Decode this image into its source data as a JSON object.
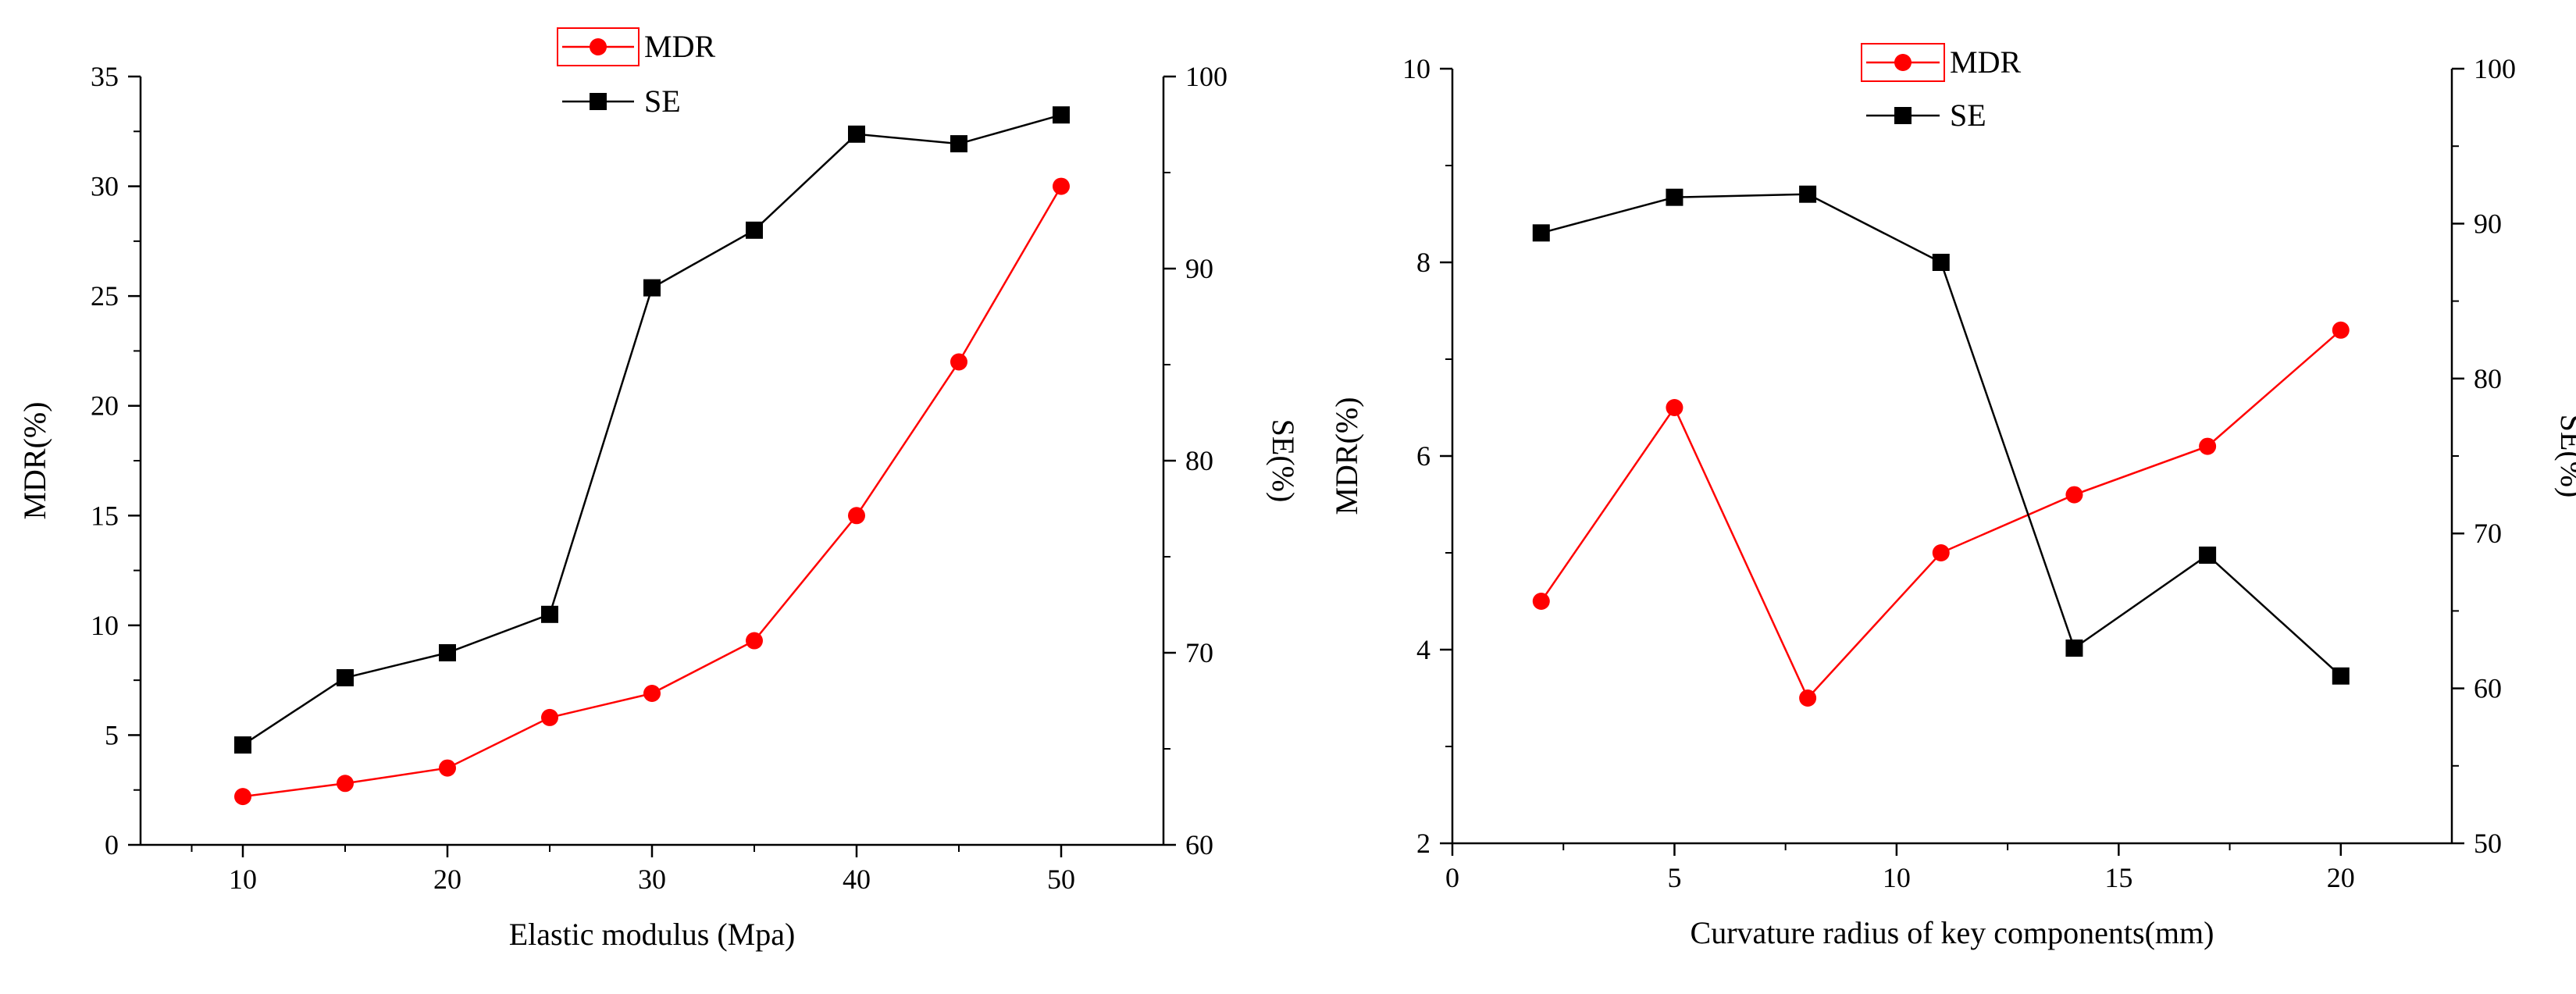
{
  "colors": {
    "mdr": "#ff0000",
    "se": "#000000",
    "axis": "#000000",
    "background": "#ffffff"
  },
  "chart_data": [
    {
      "type": "line",
      "title": "",
      "xlabel": "Elastic  modulus  (Mpa)",
      "ylabel": "MDR(%)",
      "y2label": "SE(%)",
      "xlim": [
        5,
        55
      ],
      "ylim": [
        0,
        35
      ],
      "y2lim": [
        60,
        100
      ],
      "xticks": [
        10,
        20,
        30,
        40,
        50
      ],
      "yticks": [
        0,
        5,
        10,
        15,
        20,
        25,
        30,
        35
      ],
      "y2ticks": [
        60,
        70,
        80,
        90,
        100
      ],
      "legend": {
        "placement": "top-center",
        "entries": [
          "MDR",
          "SE"
        ]
      },
      "grid": false,
      "series": [
        {
          "name": "MDR",
          "axis": "left",
          "color": "#ff0000",
          "marker": "circle",
          "x": [
            10,
            15,
            20,
            25,
            30,
            35,
            40,
            45,
            50
          ],
          "values": [
            2.2,
            2.8,
            3.5,
            5.8,
            6.9,
            9.3,
            15.0,
            22.0,
            30.0
          ]
        },
        {
          "name": "SE",
          "axis": "right",
          "color": "#000000",
          "marker": "square",
          "x": [
            10,
            15,
            20,
            25,
            30,
            35,
            40,
            45,
            50
          ],
          "values": [
            65.2,
            68.7,
            70.0,
            72.0,
            89.0,
            92.0,
            97.0,
            96.5,
            98.0
          ]
        }
      ]
    },
    {
      "type": "line",
      "title": "",
      "xlabel": "Curvature radius of key components(mm)",
      "ylabel": "MDR(%)",
      "y2label": "SE(%)",
      "xlim": [
        0,
        22.5
      ],
      "ylim": [
        2,
        10
      ],
      "y2lim": [
        50,
        100
      ],
      "xticks": [
        0,
        5,
        10,
        15,
        20
      ],
      "yticks": [
        2,
        4,
        6,
        8,
        10
      ],
      "y2ticks": [
        50,
        60,
        70,
        80,
        90,
        100
      ],
      "legend": {
        "placement": "top-center",
        "entries": [
          "MDR",
          "SE"
        ]
      },
      "grid": false,
      "series": [
        {
          "name": "MDR",
          "axis": "left",
          "color": "#ff0000",
          "marker": "circle",
          "x": [
            2,
            5,
            8,
            11,
            14,
            17,
            20
          ],
          "values": [
            4.5,
            6.5,
            3.5,
            5.0,
            5.6,
            6.1,
            7.3
          ]
        },
        {
          "name": "SE",
          "axis": "right",
          "color": "#000000",
          "marker": "square",
          "x": [
            2,
            5,
            8,
            11,
            14,
            17,
            20
          ],
          "values": [
            89.4,
            91.7,
            91.9,
            87.5,
            62.6,
            68.6,
            60.8
          ]
        }
      ]
    }
  ]
}
